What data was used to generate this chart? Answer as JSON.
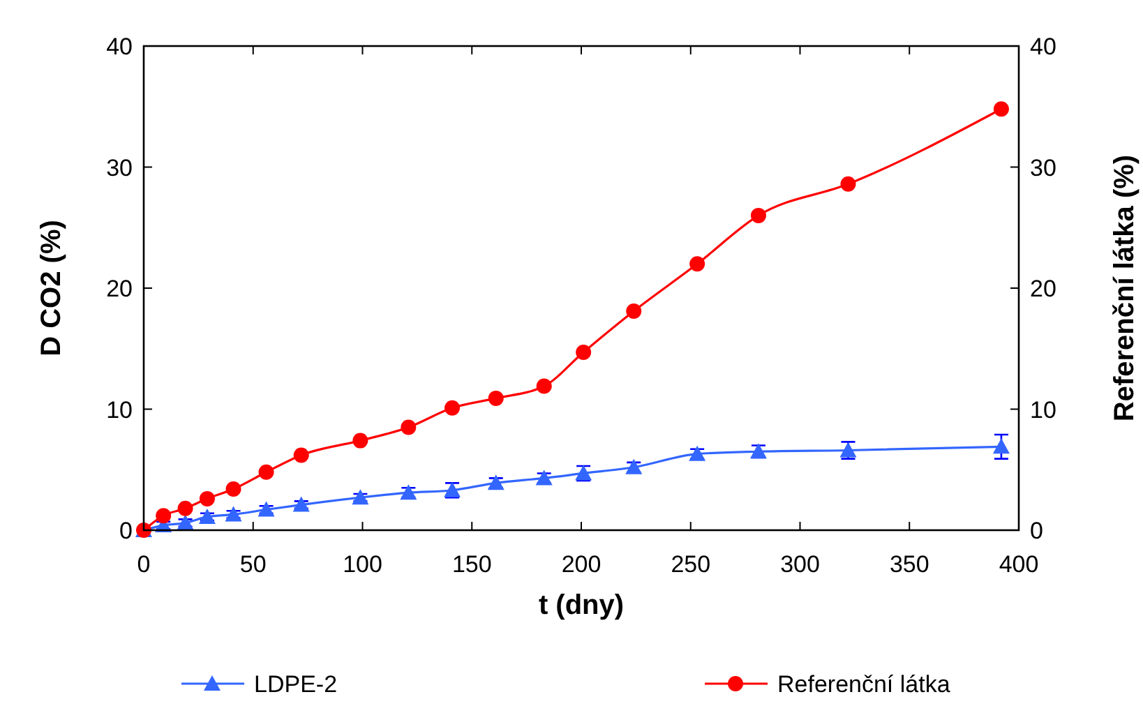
{
  "chart_data": {
    "type": "line",
    "xlabel": "t (dny)",
    "ylabel": "D CO2 (%)",
    "y2label": "Referenční látka (%)",
    "x": [
      0,
      9,
      19,
      29,
      41,
      56,
      72,
      99,
      121,
      141,
      161,
      183,
      201,
      224,
      253,
      281,
      322,
      392
    ],
    "xlim": [
      0,
      400
    ],
    "xticks": [
      0,
      50,
      100,
      150,
      200,
      250,
      300,
      350,
      400
    ],
    "ylim": [
      0,
      40
    ],
    "yticks": [
      0,
      10,
      20,
      30,
      40
    ],
    "y2lim": [
      0,
      40
    ],
    "y2ticks": [
      0,
      10,
      20,
      30,
      40
    ],
    "grid": false,
    "legend": "bottom",
    "line_style": "solid",
    "series": [
      {
        "name": "LDPE-2",
        "color": "#3366ff",
        "marker": "triangle",
        "values": [
          0,
          0.4,
          0.6,
          1.1,
          1.3,
          1.7,
          2.1,
          2.7,
          3.1,
          3.3,
          3.9,
          4.3,
          4.7,
          5.2,
          6.3,
          6.5,
          6.6,
          6.9
        ],
        "errors": [
          null,
          0.3,
          0.3,
          0.3,
          0.3,
          0.3,
          0.3,
          0.3,
          0.4,
          0.6,
          0.4,
          0.4,
          0.6,
          0.4,
          0.4,
          0.5,
          0.7,
          1.0
        ]
      },
      {
        "name": "Referenční látka",
        "color": "#ff0000",
        "marker": "circle",
        "values": [
          0,
          1.2,
          1.8,
          2.6,
          3.4,
          4.8,
          6.2,
          7.4,
          8.5,
          10.1,
          10.9,
          11.9,
          14.7,
          18.1,
          22.0,
          26.0,
          28.6,
          34.8
        ]
      }
    ]
  }
}
